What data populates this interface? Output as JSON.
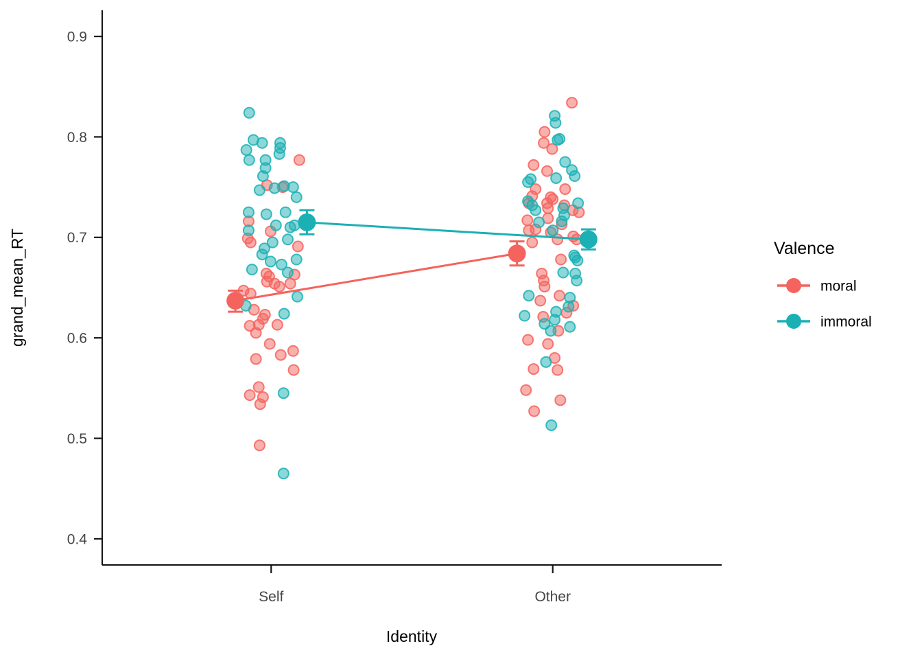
{
  "chart_data": {
    "type": "scatter",
    "subtype": "jittered-points-with-means-and-error-bars",
    "title": "",
    "xlabel": "Identity",
    "ylabel": "grand_mean_RT",
    "categories": [
      {
        "label": "Self",
        "x": 1
      },
      {
        "label": "Other",
        "x": 2
      }
    ],
    "xlim": [
      0.4,
      2.6
    ],
    "ylim": [
      0.374,
      0.926
    ],
    "yticks": [
      0.4,
      0.5,
      0.6,
      0.7,
      0.8,
      0.9
    ],
    "grid": false,
    "legend": {
      "title": "Valence",
      "position": "right",
      "entries": [
        {
          "name": "moral",
          "label": "moral",
          "color": "#F4635D"
        },
        {
          "name": "immoral",
          "label": "immoral",
          "color": "#1BB0B4"
        }
      ]
    },
    "colors": {
      "moral": "#F4635D",
      "immoral": "#1BB0B4"
    },
    "means": [
      {
        "identity": "Self",
        "valence": "moral",
        "x": 0.873,
        "mean": 0.637,
        "ci_low": 0.626,
        "ci_high": 0.647
      },
      {
        "identity": "Self",
        "valence": "immoral",
        "x": 1.127,
        "mean": 0.715,
        "ci_low": 0.703,
        "ci_high": 0.727
      },
      {
        "identity": "Other",
        "valence": "moral",
        "x": 1.873,
        "mean": 0.684,
        "ci_low": 0.672,
        "ci_high": 0.696
      },
      {
        "identity": "Other",
        "valence": "immoral",
        "x": 2.127,
        "mean": 0.698,
        "ci_low": 0.688,
        "ci_high": 0.708
      }
    ],
    "points": {
      "moral": [
        [
          1.1,
          0.777
        ],
        [
          0.985,
          0.752
        ],
        [
          1.041,
          0.75
        ],
        [
          0.92,
          0.716
        ],
        [
          0.998,
          0.706
        ],
        [
          0.917,
          0.699
        ],
        [
          0.927,
          0.695
        ],
        [
          1.095,
          0.691
        ],
        [
          0.983,
          0.664
        ],
        [
          0.993,
          0.661
        ],
        [
          1.083,
          0.663
        ],
        [
          0.985,
          0.656
        ],
        [
          1.012,
          0.654
        ],
        [
          1.029,
          0.651
        ],
        [
          1.068,
          0.654
        ],
        [
          0.902,
          0.647
        ],
        [
          0.927,
          0.644
        ],
        [
          0.939,
          0.628
        ],
        [
          0.978,
          0.623
        ],
        [
          0.971,
          0.619
        ],
        [
          0.924,
          0.612
        ],
        [
          0.956,
          0.613
        ],
        [
          1.022,
          0.613
        ],
        [
          0.946,
          0.605
        ],
        [
          0.995,
          0.594
        ],
        [
          1.034,
          0.583
        ],
        [
          1.078,
          0.587
        ],
        [
          0.946,
          0.579
        ],
        [
          1.08,
          0.568
        ],
        [
          0.956,
          0.551
        ],
        [
          0.924,
          0.543
        ],
        [
          0.971,
          0.541
        ],
        [
          0.961,
          0.534
        ],
        [
          0.959,
          0.493
        ],
        [
          2.068,
          0.834
        ],
        [
          1.971,
          0.805
        ],
        [
          1.968,
          0.794
        ],
        [
          1.998,
          0.788
        ],
        [
          1.932,
          0.772
        ],
        [
          1.98,
          0.766
        ],
        [
          1.939,
          0.748
        ],
        [
          2.044,
          0.748
        ],
        [
          1.927,
          0.741
        ],
        [
          1.993,
          0.74
        ],
        [
          2.0,
          0.738
        ],
        [
          2.041,
          0.732
        ],
        [
          1.915,
          0.734
        ],
        [
          1.98,
          0.734
        ],
        [
          1.983,
          0.729
        ],
        [
          2.071,
          0.727
        ],
        [
          2.093,
          0.725
        ],
        [
          1.91,
          0.717
        ],
        [
          1.983,
          0.719
        ],
        [
          2.032,
          0.713
        ],
        [
          1.915,
          0.707
        ],
        [
          1.939,
          0.708
        ],
        [
          1.993,
          0.705
        ],
        [
          2.017,
          0.698
        ],
        [
          2.073,
          0.701
        ],
        [
          2.085,
          0.698
        ],
        [
          1.927,
          0.695
        ],
        [
          2.029,
          0.678
        ],
        [
          1.961,
          0.664
        ],
        [
          1.968,
          0.657
        ],
        [
          1.971,
          0.651
        ],
        [
          2.024,
          0.642
        ],
        [
          1.956,
          0.637
        ],
        [
          2.073,
          0.632
        ],
        [
          2.049,
          0.625
        ],
        [
          1.966,
          0.621
        ],
        [
          2.02,
          0.607
        ],
        [
          1.912,
          0.598
        ],
        [
          1.983,
          0.594
        ],
        [
          2.007,
          0.58
        ],
        [
          1.932,
          0.569
        ],
        [
          2.017,
          0.568
        ],
        [
          1.905,
          0.548
        ],
        [
          2.027,
          0.538
        ],
        [
          1.934,
          0.527
        ]
      ],
      "immoral": [
        [
          0.922,
          0.824
        ],
        [
          0.937,
          0.797
        ],
        [
          0.968,
          0.794
        ],
        [
          0.912,
          0.787
        ],
        [
          1.032,
          0.794
        ],
        [
          1.032,
          0.789
        ],
        [
          1.029,
          0.783
        ],
        [
          0.922,
          0.777
        ],
        [
          0.98,
          0.777
        ],
        [
          0.98,
          0.769
        ],
        [
          0.971,
          0.761
        ],
        [
          0.959,
          0.747
        ],
        [
          1.012,
          0.749
        ],
        [
          1.046,
          0.751
        ],
        [
          1.078,
          0.75
        ],
        [
          1.09,
          0.74
        ],
        [
          0.92,
          0.725
        ],
        [
          0.983,
          0.723
        ],
        [
          1.051,
          0.725
        ],
        [
          1.017,
          0.712
        ],
        [
          1.068,
          0.71
        ],
        [
          1.083,
          0.712
        ],
        [
          0.92,
          0.707
        ],
        [
          1.059,
          0.698
        ],
        [
          1.005,
          0.695
        ],
        [
          0.976,
          0.689
        ],
        [
          0.968,
          0.683
        ],
        [
          0.998,
          0.676
        ],
        [
          1.037,
          0.673
        ],
        [
          1.09,
          0.678
        ],
        [
          0.932,
          0.668
        ],
        [
          1.059,
          0.665
        ],
        [
          1.093,
          0.641
        ],
        [
          0.91,
          0.632
        ],
        [
          1.046,
          0.624
        ],
        [
          1.044,
          0.545
        ],
        [
          1.044,
          0.465
        ],
        [
          2.007,
          0.821
        ],
        [
          2.01,
          0.814
        ],
        [
          2.024,
          0.798
        ],
        [
          2.017,
          0.797
        ],
        [
          2.044,
          0.775
        ],
        [
          2.068,
          0.767
        ],
        [
          2.078,
          0.761
        ],
        [
          1.922,
          0.758
        ],
        [
          1.912,
          0.755
        ],
        [
          2.012,
          0.759
        ],
        [
          1.912,
          0.736
        ],
        [
          2.09,
          0.734
        ],
        [
          1.927,
          0.732
        ],
        [
          1.939,
          0.727
        ],
        [
          2.037,
          0.729
        ],
        [
          2.041,
          0.722
        ],
        [
          1.951,
          0.715
        ],
        [
          2.032,
          0.716
        ],
        [
          2.0,
          0.707
        ],
        [
          2.08,
          0.68
        ],
        [
          2.076,
          0.682
        ],
        [
          2.088,
          0.677
        ],
        [
          2.037,
          0.665
        ],
        [
          2.08,
          0.664
        ],
        [
          2.085,
          0.657
        ],
        [
          1.915,
          0.642
        ],
        [
          2.061,
          0.64
        ],
        [
          2.056,
          0.631
        ],
        [
          2.012,
          0.626
        ],
        [
          1.9,
          0.622
        ],
        [
          2.007,
          0.618
        ],
        [
          1.971,
          0.614
        ],
        [
          1.993,
          0.607
        ],
        [
          2.061,
          0.611
        ],
        [
          1.976,
          0.576
        ],
        [
          1.995,
          0.513
        ]
      ]
    },
    "style": {
      "jitter_point_radius": 7.5,
      "jitter_fill_opacity": 0.5,
      "mean_point_radius": 13,
      "errorbar_cap_halfwidth": 11,
      "line_width": 3
    }
  }
}
